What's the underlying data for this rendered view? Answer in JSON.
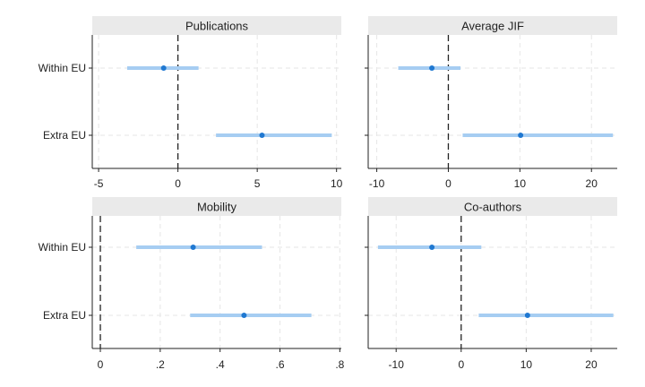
{
  "chart_data": [
    {
      "type": "coefficient-plot",
      "title": "Publications",
      "categories": [
        "Within EU",
        "Extra EU"
      ],
      "estimates": [
        -0.9,
        5.3
      ],
      "ci_low": [
        -3.2,
        2.4
      ],
      "ci_high": [
        1.3,
        9.7
      ],
      "xlim": [
        -5.4,
        10.3
      ],
      "xticks": [
        -5,
        0,
        5,
        10
      ],
      "xtick_labels": [
        "-5",
        "0",
        "5",
        "10"
      ],
      "reference_line": 0,
      "show_category_labels": true
    },
    {
      "type": "coefficient-plot",
      "title": "Average JIF",
      "categories": [
        "Within EU",
        "Extra EU"
      ],
      "estimates": [
        -2.3,
        10.1
      ],
      "ci_low": [
        -7.0,
        2.0
      ],
      "ci_high": [
        1.7,
        23.0
      ],
      "xlim": [
        -11.2,
        23.6
      ],
      "xticks": [
        -10,
        0,
        10,
        20
      ],
      "xtick_labels": [
        "-10",
        "0",
        "10",
        "20"
      ],
      "reference_line": 0,
      "show_category_labels": false
    },
    {
      "type": "coefficient-plot",
      "title": "Mobility",
      "categories": [
        "Within EU",
        "Extra EU"
      ],
      "estimates": [
        0.31,
        0.48
      ],
      "ci_low": [
        0.12,
        0.3
      ],
      "ci_high": [
        0.54,
        0.705
      ],
      "xlim": [
        -0.027,
        0.805
      ],
      "xticks": [
        0,
        0.2,
        0.4,
        0.6,
        0.8
      ],
      "xtick_labels": [
        "0",
        ".2",
        ".4",
        ".6",
        ".8"
      ],
      "reference_line": 0,
      "show_category_labels": true
    },
    {
      "type": "coefficient-plot",
      "title": "Co-authors",
      "categories": [
        "Within EU",
        "Extra EU"
      ],
      "estimates": [
        -4.5,
        10.2
      ],
      "ci_low": [
        -12.8,
        2.7
      ],
      "ci_high": [
        3.1,
        23.4
      ],
      "xlim": [
        -14.3,
        24.0
      ],
      "xticks": [
        -10,
        0,
        10,
        20
      ],
      "xtick_labels": [
        "-10",
        "0",
        "10",
        "20"
      ],
      "reference_line": 0,
      "show_category_labels": false
    }
  ],
  "style": {
    "header_bg": "#eaeaea",
    "ci_color": "#a6cdf2",
    "point_color": "#1f78d1",
    "grid_color": "#e6e6e6",
    "axis_color": "#222222",
    "ref_line_color": "#222222"
  }
}
